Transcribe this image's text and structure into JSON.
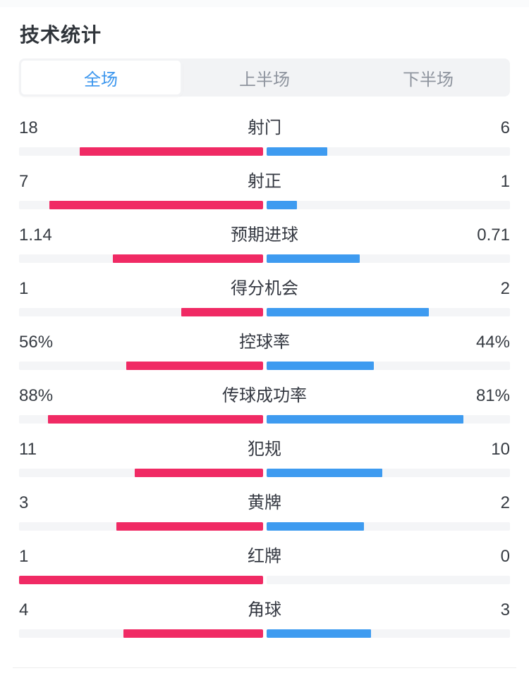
{
  "title": "技术统计",
  "tabs": [
    {
      "label": "全场",
      "active": true
    },
    {
      "label": "上半场",
      "active": false
    },
    {
      "label": "下半场",
      "active": false
    }
  ],
  "colors": {
    "home_bar": "#f02a64",
    "away_bar": "#3e9bf0",
    "track": "#f4f5f7",
    "active_tab_text": "#3d97ee"
  },
  "chart_data": {
    "type": "bar",
    "title": "技术统计",
    "period": "全场",
    "categories": [
      "射门",
      "射正",
      "预期进球",
      "得分机会",
      "控球率",
      "传球成功率",
      "犯规",
      "黄牌",
      "红牌",
      "角球"
    ],
    "series": [
      {
        "name": "home",
        "color": "#f02a64",
        "values": [
          18,
          7,
          1.14,
          1,
          "56%",
          "88%",
          11,
          3,
          1,
          4
        ]
      },
      {
        "name": "away",
        "color": "#3e9bf0",
        "values": [
          6,
          1,
          0.71,
          2,
          "44%",
          "81%",
          10,
          2,
          0,
          3
        ]
      }
    ]
  },
  "stats": [
    {
      "label": "射门",
      "home": "18",
      "away": "6",
      "home_pct": 75,
      "away_pct": 25
    },
    {
      "label": "射正",
      "home": "7",
      "away": "1",
      "home_pct": 87.5,
      "away_pct": 12.5
    },
    {
      "label": "预期进球",
      "home": "1.14",
      "away": "0.71",
      "home_pct": 61.6,
      "away_pct": 38.4
    },
    {
      "label": "得分机会",
      "home": "1",
      "away": "2",
      "home_pct": 33.3,
      "away_pct": 66.7
    },
    {
      "label": "控球率",
      "home": "56%",
      "away": "44%",
      "home_pct": 56,
      "away_pct": 44
    },
    {
      "label": "传球成功率",
      "home": "88%",
      "away": "81%",
      "home_pct": 88,
      "away_pct": 81
    },
    {
      "label": "犯规",
      "home": "11",
      "away": "10",
      "home_pct": 52.4,
      "away_pct": 47.6
    },
    {
      "label": "黄牌",
      "home": "3",
      "away": "2",
      "home_pct": 60,
      "away_pct": 40
    },
    {
      "label": "红牌",
      "home": "1",
      "away": "0",
      "home_pct": 100,
      "away_pct": 0
    },
    {
      "label": "角球",
      "home": "4",
      "away": "3",
      "home_pct": 57.1,
      "away_pct": 42.9
    }
  ]
}
